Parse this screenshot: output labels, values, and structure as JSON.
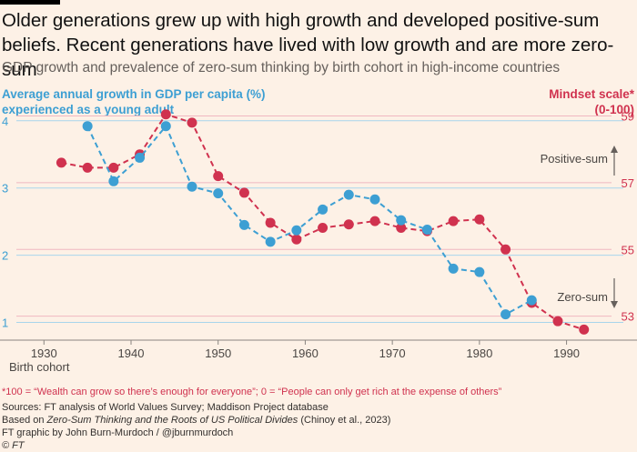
{
  "header": {
    "title": "Older generations grew up with high growth and developed positive-sum beliefs. Recent generations have lived with low growth and are more zero-sum",
    "subtitle": "GDP growth and prevalence of zero-sum thinking by birth cohort in high-income countries",
    "left_axis_title_line1": "Average annual growth in GDP per capita (%)",
    "left_axis_title_line2": "experienced as a young adult",
    "right_axis_title_line1": "Mindset scale*",
    "right_axis_title_line2": "(0-100)"
  },
  "chart_data": {
    "type": "line",
    "x_label": "Birth cohort",
    "x_range": [
      1926,
      1996
    ],
    "x_ticks": [
      "1930",
      "1940",
      "1950",
      "1960",
      "1970",
      "1980",
      "1990"
    ],
    "y_left": {
      "range": [
        0.75,
        4.2
      ],
      "ticks": [
        "1",
        "2",
        "3",
        "4"
      ]
    },
    "y_right": {
      "range": [
        52.31,
        59.26
      ],
      "ticks": [
        "53",
        "55",
        "57",
        "59"
      ]
    },
    "annotations": {
      "positive": "Positive-sum",
      "zero": "Zero-sum"
    },
    "colors": {
      "growth": "#3d9fd3",
      "mindset": "#d0324f"
    },
    "series": [
      {
        "name": "Average annual growth in GDP per capita (%)",
        "axis": "left",
        "x": [
          1935,
          1938,
          1941,
          1944,
          1947,
          1950,
          1953,
          1956,
          1959,
          1962,
          1965,
          1968,
          1971,
          1974,
          1977,
          1980,
          1983,
          1986
        ],
        "values": [
          3.92,
          3.1,
          3.45,
          3.92,
          3.02,
          2.92,
          2.45,
          2.2,
          2.37,
          2.68,
          2.9,
          2.83,
          2.52,
          2.38,
          1.8,
          1.75,
          1.12,
          1.33
        ]
      },
      {
        "name": "Mindset scale (0-100)",
        "axis": "right",
        "x": [
          1932,
          1935,
          1938,
          1941,
          1944,
          1947,
          1950,
          1953,
          1956,
          1959,
          1962,
          1965,
          1968,
          1971,
          1974,
          1977,
          1980,
          1983,
          1986,
          1989,
          1992
        ],
        "values": [
          57.6,
          57.45,
          57.45,
          57.85,
          59.05,
          58.8,
          57.2,
          56.7,
          55.8,
          55.3,
          55.65,
          55.75,
          55.85,
          55.65,
          55.55,
          55.85,
          55.9,
          55.0,
          53.4,
          52.85,
          52.6
        ]
      }
    ]
  },
  "footer": {
    "footnote": "*100 = “Wealth can grow so there’s enough for everyone”; 0 = “People can only get rich at the expense of others”",
    "sources": "Sources: FT analysis of World Values Survey; Maddison Project database",
    "based_on_prefix": "Based on ",
    "based_on_title": "Zero-Sum Thinking and the Roots of US Political Divides",
    "based_on_suffix": " (Chinoy et al., 2023)",
    "credit": "FT graphic by John Burn-Murdoch / @jburnmurdoch",
    "copyright": "© FT"
  }
}
